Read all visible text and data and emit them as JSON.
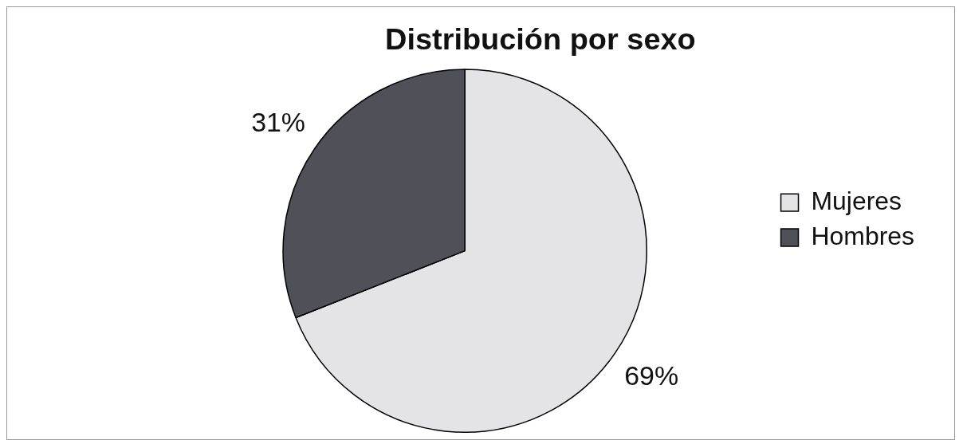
{
  "chart_data": {
    "type": "pie",
    "title": "Distribución por sexo",
    "categories": [
      "Mujeres",
      "Hombres"
    ],
    "values": [
      69,
      31
    ],
    "colors": [
      "#e4e4e6",
      "#505058"
    ],
    "value_labels": [
      "69%",
      "31%"
    ],
    "legend": "right"
  }
}
